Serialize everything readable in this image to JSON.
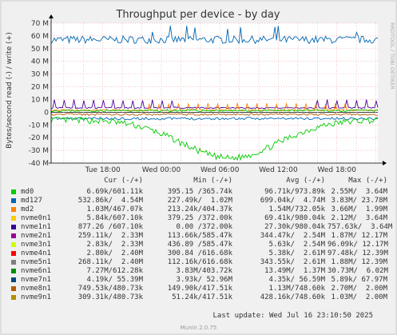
{
  "chart_data": {
    "type": "line",
    "title": "Throughput per device - by day",
    "ylabel": "Bytes/second read (-) / write (+)",
    "side_label": "RRDTOOL / TOBI OETIKER",
    "ylim": [
      -40000000,
      70000000
    ],
    "yticks": [
      "70 M",
      "60 M",
      "50 M",
      "40 M",
      "30 M",
      "20 M",
      "10 M",
      "0",
      "-10 M",
      "-20 M",
      "-30 M",
      "-40 M"
    ],
    "ytick_values": [
      70,
      60,
      50,
      40,
      30,
      20,
      10,
      0,
      -10,
      -20,
      -30,
      -40
    ],
    "xticks": [
      "Tue 18:00",
      "Wed 00:00",
      "Wed 06:00",
      "Wed 12:00",
      "Wed 18:00"
    ],
    "xtick_hours": [
      18,
      24,
      30,
      36,
      42
    ],
    "xlim_hours": [
      12.7,
      46.2
    ],
    "grid": true,
    "series": [
      {
        "name": "md127",
        "color": "#0066b3",
        "approx_write_level_M": 57,
        "approx_read_level_M": -5
      },
      {
        "name": "nvme7n1",
        "color": "#00cc00",
        "approx_read_trough_M": -30
      },
      {
        "name": "nvme1n1",
        "color": "#4d0099",
        "approx_write_peaks_M": 8
      },
      {
        "name": "nvme5n1",
        "color": "#ff8000",
        "approx_write_peaks_M": 6
      }
    ]
  },
  "legend": {
    "headers": {
      "cur": "Cur (-/+)",
      "min": "Min (-/+)",
      "avg": "Avg (-/+)",
      "max": "Max (-/+)"
    },
    "rows": [
      {
        "name": "md0",
        "color": "#00cc00",
        "cur": "6.69k/601.11k",
        "min": "395.15 /365.74k",
        "avg": "96.71k/973.89k",
        "max": "2.55M/  3.64M"
      },
      {
        "name": "md127",
        "color": "#0066b3",
        "cur": "532.86k/  4.54M",
        "min": "227.49k/  1.02M",
        "avg": "699.04k/  4.74M",
        "max": "3.83M/ 23.78M"
      },
      {
        "name": "md2",
        "color": "#ff8000",
        "cur": "1.03M/467.07k",
        "min": "213.24k/404.37k",
        "avg": "1.54M/732.05k",
        "max": "3.66M/  1.99M"
      },
      {
        "name": "nvme0n1",
        "color": "#ffcc00",
        "cur": "5.84k/607.10k",
        "min": "379.25 /372.00k",
        "avg": "69.41k/980.04k",
        "max": "2.12M/  3.64M"
      },
      {
        "name": "nvme1n1",
        "color": "#330099",
        "cur": "877.26 /607.10k",
        "min": "0.00 /372.00k",
        "avg": "27.30k/980.04k",
        "max": "757.63k/  3.64M"
      },
      {
        "name": "nvme2n1",
        "color": "#990099",
        "cur": "259.11k/  2.33M",
        "min": "113.66k/585.47k",
        "avg": "344.47k/  2.54M",
        "max": "1.87M/ 12.17M"
      },
      {
        "name": "nvme3n1",
        "color": "#ccff00",
        "cur": "2.83k/  2.33M",
        "min": "436.89 /585.47k",
        "avg": "5.63k/  2.54M",
        "max": "96.09k/ 12.17M"
      },
      {
        "name": "nvme4n1",
        "color": "#ff0000",
        "cur": "2.80k/  2.40M",
        "min": "300.84 /616.68k",
        "avg": "5.38k/  2.61M",
        "max": "97.48k/ 12.39M"
      },
      {
        "name": "nvme5n1",
        "color": "#808080",
        "cur": "268.11k/  2.40M",
        "min": "112.16k/616.68k",
        "avg": "343.55k/  2.61M",
        "max": "1.88M/ 12.39M"
      },
      {
        "name": "nvme6n1",
        "color": "#008f00",
        "cur": "7.27M/612.28k",
        "min": "3.83M/403.72k",
        "avg": "13.49M/  1.37M",
        "max": "30.73M/  6.02M"
      },
      {
        "name": "nvme7n1",
        "color": "#00487d",
        "cur": "4.19k/ 55.39M",
        "min": "3.93k/ 52.96M",
        "avg": "4.35k/ 56.59M",
        "max": "5.89k/ 67.97M"
      },
      {
        "name": "nvme8n1",
        "color": "#b35a00",
        "cur": "749.53k/480.73k",
        "min": "149.90k/417.51k",
        "avg": "1.13M/748.60k",
        "max": "2.70M/  2.00M"
      },
      {
        "name": "nvme9n1",
        "color": "#b38f00",
        "cur": "309.31k/480.73k",
        "min": "51.24k/417.51k",
        "avg": "428.16k/748.60k",
        "max": "1.03M/  2.00M"
      }
    ]
  },
  "footer": {
    "last_update": "Last update:  Wed Jul 16 23:10:50 2025",
    "munin": "Munin 2.0.75"
  }
}
